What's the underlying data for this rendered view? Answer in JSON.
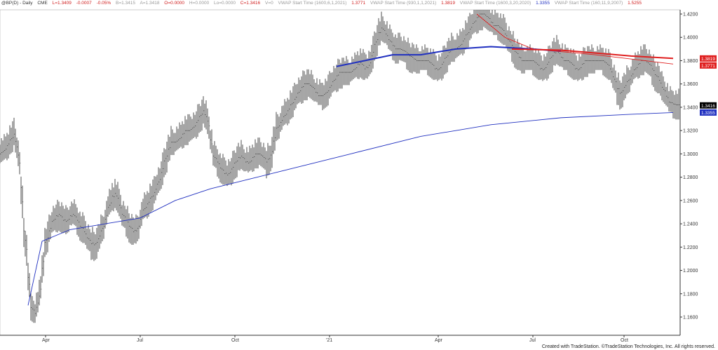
{
  "header": {
    "symbol": "@BP(D) - Daily",
    "exchange": "CME",
    "last": "L=1.3409",
    "change": "-0.0007",
    "pct": "-0.05%",
    "bid": "B=1.3415",
    "ask": "A=1.3418",
    "open": "O=0.0000",
    "high": "H=0.0000",
    "low": "Lo=0.0000",
    "close": "C=1.3416",
    "vol": "V=0",
    "vwap1_label": "VWAP Start Time (1600,6,1,2021)",
    "vwap1_value": "1.3771",
    "vwap2_label": "VWAP Start Time (930,1,1,2021)",
    "vwap2_value": "1.3819",
    "vwap3_label": "VWAP Start Time (1600,3,20,2020)",
    "vwap3_value": "1.3355",
    "vwap4_label": "VWAP Start Time (160,11,9,2007)",
    "vwap4_value": "1.5255"
  },
  "footer": "Created with TradeStation. ©TradeStation Technologies, Inc. All rights reserved.",
  "colors": {
    "bars": "#222222",
    "vwap_red": "#e02020",
    "vwap_blue": "#2030c0",
    "last_tag": "#000000"
  },
  "chart_data": {
    "type": "bar",
    "ylim": [
      1.15,
      1.43
    ],
    "y_ticks": [
      "1.4200",
      "1.4000",
      "1.3800",
      "1.3600",
      "1.3400",
      "1.3200",
      "1.3000",
      "1.2800",
      "1.2600",
      "1.2400",
      "1.2200",
      "1.2000",
      "1.1800",
      "1.1600"
    ],
    "x_ticks": [
      {
        "label": "Apr",
        "week": 6.5
      },
      {
        "label": "Jul",
        "week": 20
      },
      {
        "label": "Oct",
        "week": 33.5
      },
      {
        "label": "'21",
        "week": 47
      },
      {
        "label": "Apr",
        "week": 62.5
      },
      {
        "label": "Jul",
        "week": 76
      },
      {
        "label": "Oct",
        "week": 89
      }
    ],
    "weekly_close": [
      1.3,
      1.31,
      1.32,
      1.25,
      1.17,
      1.16,
      1.22,
      1.24,
      1.25,
      1.24,
      1.25,
      1.24,
      1.23,
      1.22,
      1.23,
      1.25,
      1.27,
      1.25,
      1.24,
      1.23,
      1.25,
      1.26,
      1.27,
      1.29,
      1.31,
      1.31,
      1.32,
      1.32,
      1.33,
      1.34,
      1.3,
      1.29,
      1.28,
      1.29,
      1.3,
      1.29,
      1.3,
      1.3,
      1.29,
      1.32,
      1.33,
      1.34,
      1.35,
      1.36,
      1.36,
      1.35,
      1.35,
      1.36,
      1.37,
      1.37,
      1.37,
      1.38,
      1.37,
      1.39,
      1.41,
      1.4,
      1.39,
      1.39,
      1.385,
      1.38,
      1.38,
      1.38,
      1.37,
      1.38,
      1.39,
      1.39,
      1.4,
      1.41,
      1.42,
      1.42,
      1.41,
      1.41,
      1.4,
      1.39,
      1.38,
      1.38,
      1.38,
      1.37,
      1.38,
      1.39,
      1.38,
      1.38,
      1.37,
      1.38,
      1.38,
      1.38,
      1.38,
      1.37,
      1.35,
      1.36,
      1.37,
      1.38,
      1.38,
      1.37,
      1.36,
      1.345,
      1.342
    ],
    "vwap_lines": [
      {
        "name": "VWAP (1600,3,20,2020)",
        "color": "#2030c0",
        "thick": false,
        "points": [
          [
            4,
            1.17
          ],
          [
            6,
            1.225
          ],
          [
            10,
            1.235
          ],
          [
            15,
            1.24
          ],
          [
            20,
            1.245
          ],
          [
            25,
            1.26
          ],
          [
            30,
            1.27
          ],
          [
            40,
            1.285
          ],
          [
            50,
            1.3
          ],
          [
            60,
            1.315
          ],
          [
            70,
            1.325
          ],
          [
            80,
            1.331
          ],
          [
            90,
            1.334
          ],
          [
            96,
            1.3355
          ]
        ]
      },
      {
        "name": "VWAP (930,1,1,2021)",
        "color": "#2030c0",
        "thick": true,
        "points": [
          [
            48,
            1.375
          ],
          [
            52,
            1.38
          ],
          [
            56,
            1.385
          ],
          [
            60,
            1.385
          ],
          [
            65,
            1.39
          ],
          [
            70,
            1.392
          ],
          [
            76,
            1.39
          ],
          [
            80,
            1.388
          ]
        ]
      },
      {
        "name": "VWAP (930,1,1,2021) cont",
        "color": "#e02020",
        "thick": true,
        "points": [
          [
            73,
            1.39
          ],
          [
            80,
            1.389
          ],
          [
            90,
            1.384
          ],
          [
            96,
            1.3819
          ]
        ]
      },
      {
        "name": "VWAP (1600,6,1,2021)",
        "color": "#e02020",
        "thick": false,
        "points": [
          [
            68,
            1.42
          ],
          [
            72,
            1.4
          ],
          [
            76,
            1.39
          ],
          [
            85,
            1.385
          ],
          [
            96,
            1.3771
          ]
        ]
      }
    ],
    "price_tags": [
      {
        "value": "1.3819",
        "color": "#e02020"
      },
      {
        "value": "1.3771",
        "color": "#e02020"
      },
      {
        "value": "1.3416",
        "color": "#000000"
      },
      {
        "value": "1.3355",
        "color": "#2030c0"
      }
    ]
  }
}
